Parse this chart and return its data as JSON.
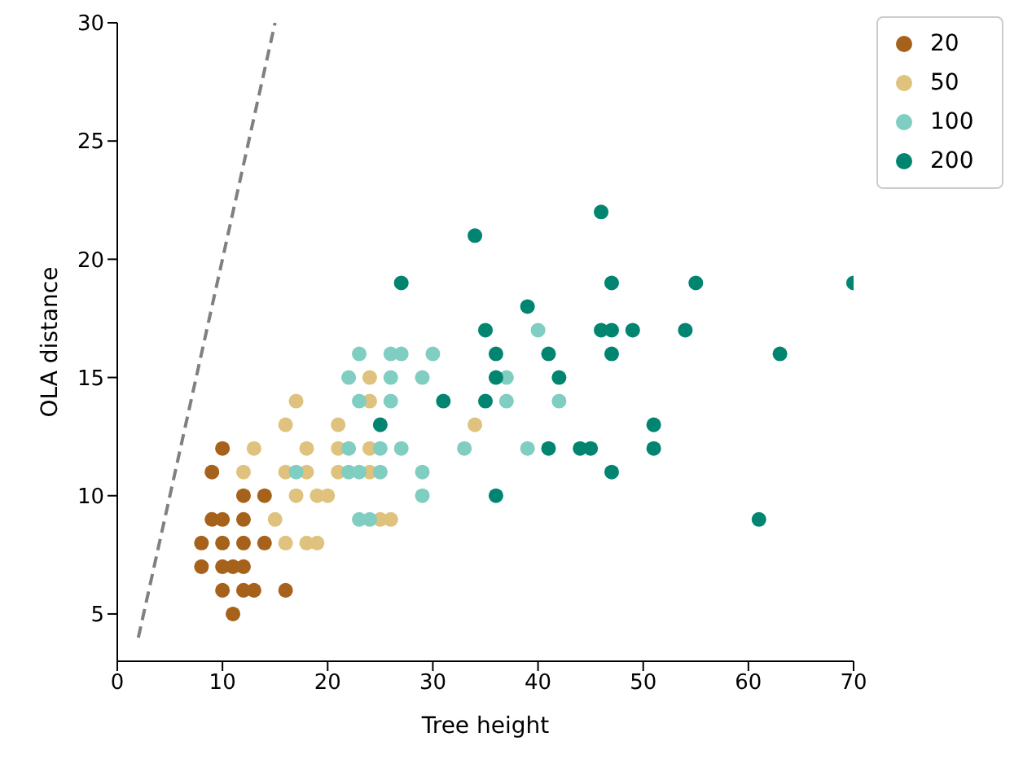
{
  "chart_data": {
    "type": "scatter",
    "xlabel": "Tree height",
    "ylabel": "OLA distance",
    "xlim": [
      0,
      70
    ],
    "ylim": [
      3,
      30
    ],
    "xticks": [
      0,
      10,
      20,
      30,
      40,
      50,
      60,
      70
    ],
    "yticks": [
      5,
      10,
      15,
      20,
      25,
      30
    ],
    "legend": "top right",
    "marker": "circle",
    "series": [
      {
        "type": "line",
        "color": "#808080",
        "line_style": "dashed",
        "marker": "none",
        "x": [
          2,
          15
        ],
        "values": [
          4,
          30
        ]
      },
      {
        "name": "20",
        "color": "#a6611a",
        "x": [
          10,
          9,
          12,
          14,
          9,
          10,
          12,
          8,
          10,
          12,
          14,
          8,
          10,
          11,
          12,
          10,
          12,
          13,
          16,
          11
        ],
        "values": [
          12,
          11,
          10,
          10,
          9,
          9,
          9,
          8,
          8,
          8,
          8,
          7,
          7,
          7,
          7,
          6,
          6,
          6,
          6,
          5
        ]
      },
      {
        "name": "50",
        "color": "#dfc27d",
        "x": [
          13,
          18,
          21,
          24,
          12,
          16,
          18,
          21,
          24,
          17,
          19,
          20,
          15,
          25,
          26,
          16,
          18,
          19,
          17,
          24,
          24,
          16,
          21,
          34
        ],
        "values": [
          12,
          12,
          12,
          12,
          11,
          11,
          11,
          11,
          11,
          10,
          10,
          10,
          9,
          9,
          9,
          8,
          8,
          8,
          14,
          14,
          15,
          13,
          13,
          13
        ]
      },
      {
        "name": "100",
        "color": "#80cdc1",
        "x": [
          23,
          26,
          27,
          30,
          22,
          26,
          29,
          23,
          26,
          22,
          25,
          27,
          33,
          17,
          22,
          23,
          25,
          29,
          29,
          23,
          24,
          40,
          37,
          37,
          42,
          39
        ],
        "values": [
          16,
          16,
          16,
          16,
          15,
          15,
          15,
          14,
          14,
          12,
          12,
          12,
          12,
          11,
          11,
          11,
          11,
          11,
          10,
          9,
          9,
          17,
          15,
          14,
          14,
          12
        ]
      },
      {
        "name": "200",
        "color": "#018571",
        "x": [
          27,
          25,
          31,
          46,
          34,
          47,
          55,
          39,
          35,
          46,
          47,
          49,
          54,
          36,
          41,
          47,
          36,
          42,
          35,
          51,
          41,
          44,
          45,
          51,
          47,
          36,
          63,
          70,
          61
        ],
        "values": [
          19,
          13,
          14,
          22,
          21,
          19,
          19,
          18,
          17,
          17,
          17,
          17,
          17,
          16,
          16,
          16,
          15,
          15,
          14,
          13,
          12,
          12,
          12,
          12,
          11,
          10,
          16,
          19,
          9
        ]
      }
    ]
  }
}
